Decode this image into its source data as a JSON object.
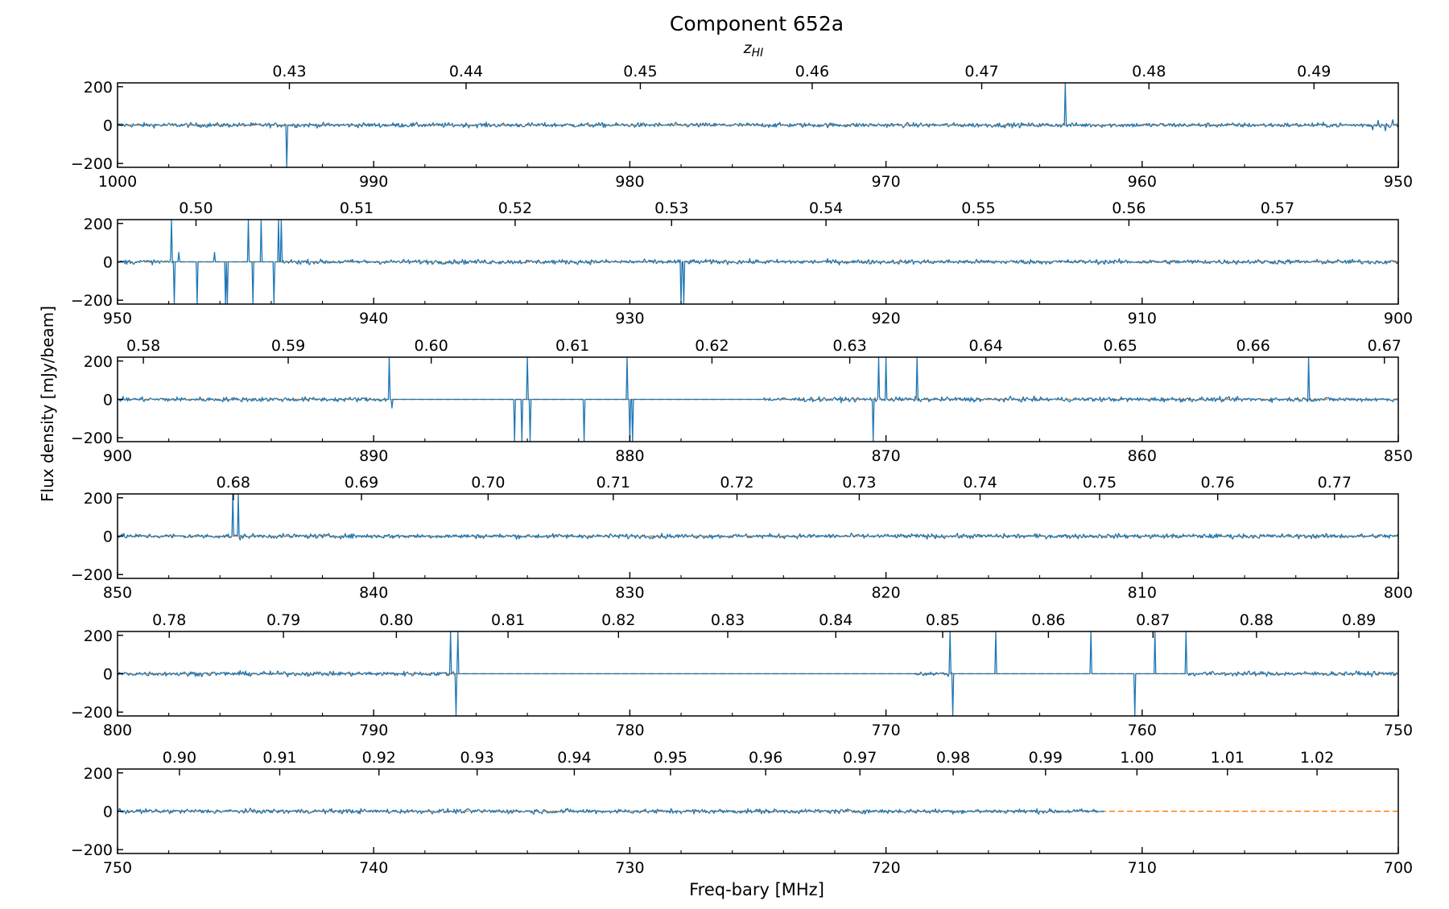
{
  "chart_data": {
    "type": "line",
    "title": "Component 652a",
    "xlabel": "Freq-bary [MHz]",
    "ylabel": "Flux density [mJy/beam]",
    "top_axis_label": "z",
    "top_axis_label_sub": "HI",
    "ylim": [
      -220,
      220
    ],
    "yticks": [
      -200,
      0,
      200
    ],
    "series": [
      {
        "role": "spectrum",
        "color": "#1f77b4"
      },
      {
        "role": "model",
        "color": "#ff7f0e",
        "dash": true
      }
    ],
    "panels": [
      {
        "xlim": [
          1000,
          950
        ],
        "xticks": [
          1000,
          990,
          980,
          970,
          960,
          950
        ],
        "zticks": [
          "0.43",
          "0.44",
          "0.45",
          "0.46",
          "0.47",
          "0.48",
          "0.49"
        ],
        "data_end": 950,
        "noise": 6,
        "flat": [],
        "spikes": [
          [
            993.4,
            -220
          ],
          [
            963.0,
            220
          ],
          [
            951.0,
            -25
          ],
          [
            950.8,
            25
          ],
          [
            950.5,
            -30
          ],
          [
            950.2,
            28
          ]
        ]
      },
      {
        "xlim": [
          950,
          900
        ],
        "xticks": [
          950,
          940,
          930,
          920,
          910,
          900
        ],
        "zticks": [
          "0.50",
          "0.51",
          "0.52",
          "0.53",
          "0.54",
          "0.55",
          "0.56",
          "0.57"
        ],
        "data_end": 900,
        "noise": 6,
        "flat": [
          [
            947.8,
            943.6
          ]
        ],
        "spikes": [
          [
            947.9,
            220
          ],
          [
            947.8,
            -220
          ],
          [
            947.6,
            50
          ],
          [
            946.9,
            -220
          ],
          [
            946.2,
            50
          ],
          [
            945.8,
            -220
          ],
          [
            945.7,
            -220
          ],
          [
            944.9,
            220
          ],
          [
            944.7,
            -220
          ],
          [
            944.4,
            220
          ],
          [
            943.9,
            -220
          ],
          [
            943.7,
            220
          ],
          [
            943.6,
            220
          ],
          [
            928.0,
            -220
          ],
          [
            927.9,
            -220
          ]
        ]
      },
      {
        "xlim": [
          900,
          850
        ],
        "xticks": [
          900,
          890,
          880,
          870,
          860,
          850
        ],
        "zticks": [
          "0.58",
          "0.59",
          "0.60",
          "0.61",
          "0.62",
          "0.63",
          "0.64",
          "0.65",
          "0.66",
          "0.67"
        ],
        "data_end": 850,
        "noise": 6,
        "flat": [
          [
            889.5,
            874.8
          ]
        ],
        "spikes": [
          [
            889.4,
            220
          ],
          [
            889.3,
            -45
          ],
          [
            884.5,
            -220
          ],
          [
            884.2,
            -220
          ],
          [
            884.0,
            220
          ],
          [
            883.9,
            -220
          ],
          [
            881.8,
            -220
          ],
          [
            880.1,
            220
          ],
          [
            880.0,
            -220
          ],
          [
            879.9,
            -220
          ],
          [
            868.8,
            220
          ],
          [
            870.0,
            220
          ],
          [
            870.5,
            -220
          ],
          [
            870.3,
            220
          ],
          [
            853.5,
            220
          ]
        ],
        "dense": [
          879.3,
          875.3
        ]
      },
      {
        "xlim": [
          850,
          800
        ],
        "xticks": [
          850,
          840,
          830,
          820,
          810,
          800
        ],
        "zticks": [
          "0.68",
          "0.69",
          "0.70",
          "0.71",
          "0.72",
          "0.73",
          "0.74",
          "0.75",
          "0.76",
          "0.77"
        ],
        "data_end": 800,
        "noise": 6,
        "flat": [],
        "spikes": [
          [
            845.5,
            220
          ],
          [
            845.3,
            220
          ],
          [
            845.2,
            -20
          ]
        ]
      },
      {
        "xlim": [
          800,
          750
        ],
        "xticks": [
          800,
          790,
          780,
          770,
          760,
          750
        ],
        "zticks": [
          "0.78",
          "0.79",
          "0.80",
          "0.81",
          "0.82",
          "0.83",
          "0.84",
          "0.85",
          "0.86",
          "0.87",
          "0.88",
          "0.89"
        ],
        "data_end": 750,
        "noise": 6,
        "flat": [
          [
            786.8,
            768.9
          ],
          [
            767.4,
            758.3
          ]
        ],
        "spikes": [
          [
            787.0,
            220
          ],
          [
            786.8,
            -220
          ],
          [
            786.7,
            220
          ],
          [
            767.4,
            -220
          ],
          [
            767.5,
            220
          ],
          [
            765.7,
            220
          ],
          [
            762.0,
            220
          ],
          [
            760.3,
            -220
          ],
          [
            759.5,
            220
          ],
          [
            758.3,
            220
          ]
        ]
      },
      {
        "xlim": [
          750,
          700
        ],
        "xticks": [
          750,
          740,
          730,
          720,
          710,
          700
        ],
        "zticks": [
          "0.90",
          "0.91",
          "0.92",
          "0.93",
          "0.94",
          "0.95",
          "0.96",
          "0.97",
          "0.98",
          "0.99",
          "1.00",
          "1.01",
          "1.02"
        ],
        "data_end": 711.5,
        "noise": 6,
        "flat": [],
        "spikes": []
      }
    ]
  }
}
